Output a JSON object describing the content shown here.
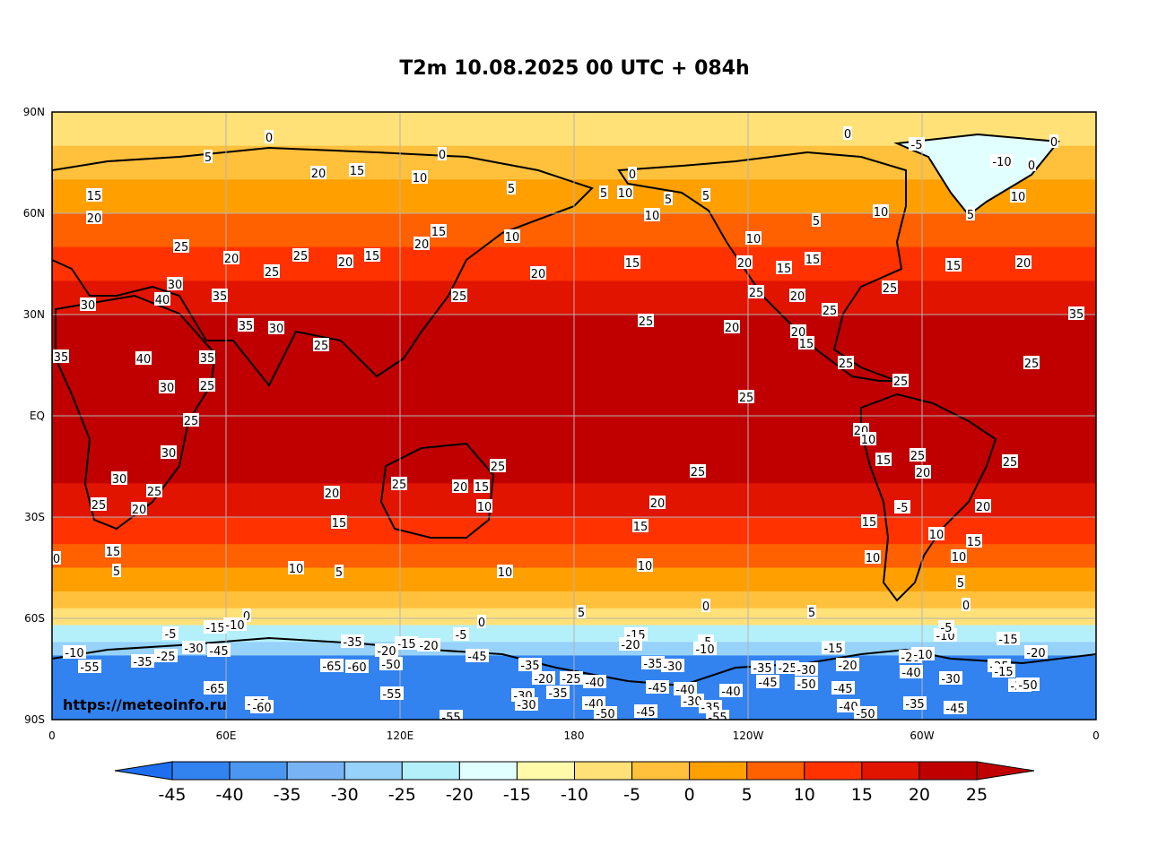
{
  "title": "T2m 10.08.2025 00 UTC + 084h",
  "watermark": "https://meteoinfo.ru",
  "lat_ticks": [
    "90N",
    "60N",
    "30N",
    "EQ",
    "30S",
    "60S",
    "90S"
  ],
  "lon_ticks": [
    "0",
    "60E",
    "120E",
    "180",
    "120W",
    "60W",
    "0"
  ],
  "colorbar": {
    "ticks": [
      "-45",
      "-40",
      "-35",
      "-30",
      "-25",
      "-20",
      "-15",
      "-10",
      "-5",
      "0",
      "5",
      "10",
      "15",
      "20",
      "25"
    ],
    "colors": [
      "#1e6ef0",
      "#3282f0",
      "#4b96f0",
      "#78b4f5",
      "#96d2fa",
      "#b4f0fa",
      "#e1ffff",
      "#fffaaa",
      "#ffe178",
      "#ffc03c",
      "#ffa000",
      "#ff6000",
      "#ff3200",
      "#e11400",
      "#c00000"
    ],
    "under_color": "#1e6ef0",
    "over_color": "#c00000"
  },
  "bands": [
    {
      "lat": "90N",
      "color": "#ffe178"
    },
    {
      "lat": "80N",
      "color": "#ffc03c"
    },
    {
      "lat": "70N",
      "color": "#ffa000"
    },
    {
      "lat": "60N",
      "color": "#ff6000"
    },
    {
      "lat": "50N",
      "color": "#ff3200"
    },
    {
      "lat": "40N",
      "color": "#e11400"
    },
    {
      "lat": "30N",
      "color": "#c00000"
    },
    {
      "lat": "20S",
      "color": "#e11400"
    },
    {
      "lat": "30S",
      "color": "#ff3200"
    },
    {
      "lat": "38S",
      "color": "#ff6000"
    },
    {
      "lat": "45S",
      "color": "#ffa000"
    },
    {
      "lat": "52S",
      "color": "#ffc03c"
    },
    {
      "lat": "57S",
      "color": "#ffe178"
    },
    {
      "lat": "62S",
      "color": "#b4f0fa"
    },
    {
      "lat": "67S",
      "color": "#96d2fa"
    },
    {
      "lat": "71S",
      "color": "#3282f0"
    },
    {
      "lat": "90S",
      "color": "#1e6ef0"
    }
  ],
  "contour_labels": [
    "0",
    "5",
    "20",
    "15",
    "10",
    "25",
    "30",
    "35",
    "40",
    "-5",
    "-10",
    "-15",
    "-20",
    "-25",
    "-30",
    "-35",
    "-40",
    "-45",
    "-50",
    "-55",
    "-60",
    "-65"
  ]
}
